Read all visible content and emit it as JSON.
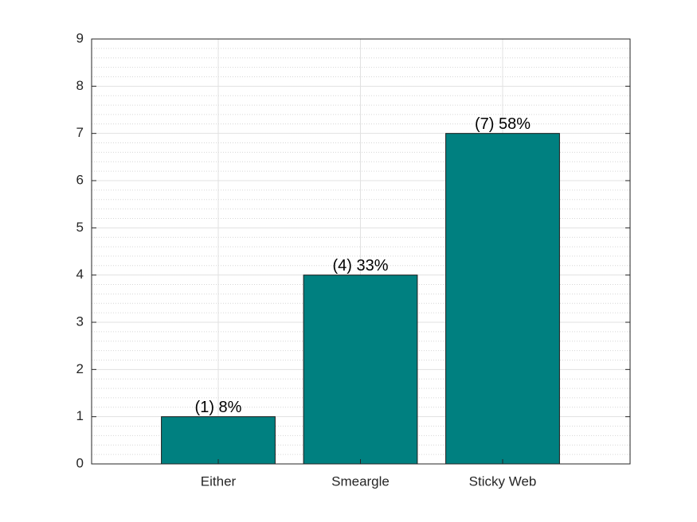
{
  "chart_data": {
    "type": "bar",
    "categories": [
      "Either",
      "Smeargle",
      "Sticky Web"
    ],
    "values": [
      1,
      4,
      7
    ],
    "value_labels": [
      "(1) 8%",
      "(4) 33%",
      "(7) 58%"
    ],
    "color": "#008080",
    "ylim": [
      0,
      9
    ],
    "yticks": [
      0,
      1,
      2,
      3,
      4,
      5,
      6,
      7,
      8,
      9
    ],
    "grid": true,
    "minor_grid": true
  }
}
